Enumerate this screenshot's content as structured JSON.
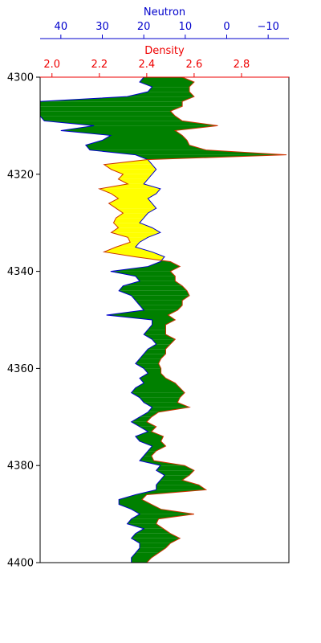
{
  "chart_data": {
    "type": "area",
    "y_axis": {
      "range": [
        4300,
        4400
      ],
      "inverted": true,
      "ticks": [
        4300,
        4320,
        4340,
        4360,
        4380,
        4400
      ],
      "label": ""
    },
    "top_axes": [
      {
        "name": "Neutron",
        "label": "Neutron",
        "color": "#0000cc",
        "range": [
          45,
          -15
        ],
        "reversed": true,
        "ticks": [
          40,
          30,
          20,
          10,
          0,
          -10
        ],
        "tick_labels": [
          "40",
          "30",
          "20",
          "10",
          "0",
          "−10"
        ]
      },
      {
        "name": "Density",
        "label": "Density",
        "color": "#ee0000",
        "range": [
          1.95,
          3.0
        ],
        "reversed": false,
        "ticks": [
          2.0,
          2.2,
          2.4,
          2.6,
          2.8
        ],
        "tick_labels": [
          "2.0",
          "2.2",
          "2.4",
          "2.6",
          "2.8"
        ]
      }
    ],
    "series": [
      {
        "name": "Neutron",
        "line_color": "#0000cc",
        "depth": [
          4300,
          4301,
          4302,
          4303,
          4304,
          4305,
          4306,
          4307,
          4308,
          4309,
          4310,
          4311,
          4312,
          4313,
          4314,
          4315,
          4316,
          4317,
          4318,
          4319,
          4320,
          4321,
          4322,
          4323,
          4324,
          4325,
          4326,
          4327,
          4328,
          4329,
          4330,
          4331,
          4332,
          4333,
          4334,
          4335,
          4336,
          4337,
          4338,
          4339,
          4340,
          4341,
          4342,
          4343,
          4344,
          4345,
          4346,
          4347,
          4348,
          4349,
          4350,
          4351,
          4352,
          4353,
          4354,
          4355,
          4356,
          4357,
          4358,
          4359,
          4360,
          4361,
          4362,
          4363,
          4364,
          4365,
          4366,
          4367,
          4368,
          4369,
          4370,
          4371,
          4372,
          4373,
          4374,
          4375,
          4376,
          4377,
          4378,
          4379,
          4380,
          4381,
          4382,
          4383,
          4384,
          4385,
          4386,
          4387,
          4388,
          4389,
          4390,
          4391,
          4392,
          4393,
          4394,
          4395,
          4396,
          4397,
          4398,
          4399,
          4400
        ],
        "values": [
          20,
          21,
          18,
          19,
          24,
          45,
          45,
          45,
          45,
          44,
          32,
          40,
          28,
          30,
          34,
          33,
          22,
          19,
          18,
          17,
          18,
          19,
          20,
          16,
          17,
          19,
          18,
          17,
          19,
          20,
          21,
          18,
          16,
          19,
          21,
          22,
          18,
          15,
          16,
          19,
          28,
          22,
          21,
          25,
          26,
          23,
          22,
          21,
          20,
          29,
          18,
          18,
          19,
          20,
          18,
          17,
          19,
          20,
          21,
          22,
          20,
          19,
          21,
          20,
          22,
          23,
          21,
          20,
          18,
          19,
          21,
          23,
          21,
          19,
          22,
          21,
          18,
          19,
          20,
          21,
          16,
          17,
          15,
          16,
          17,
          17,
          22,
          26,
          26,
          23,
          21,
          23,
          24,
          20,
          22,
          23,
          21,
          21,
          22,
          23,
          23
        ]
      },
      {
        "name": "Density",
        "line_color": "#cc3300",
        "depth": [
          4300,
          4301,
          4302,
          4303,
          4304,
          4305,
          4306,
          4307,
          4308,
          4309,
          4310,
          4311,
          4312,
          4313,
          4314,
          4315,
          4316,
          4317,
          4318,
          4319,
          4320,
          4321,
          4322,
          4323,
          4324,
          4325,
          4326,
          4327,
          4328,
          4329,
          4330,
          4331,
          4332,
          4333,
          4334,
          4335,
          4336,
          4337,
          4338,
          4339,
          4340,
          4341,
          4342,
          4343,
          4344,
          4345,
          4346,
          4347,
          4348,
          4349,
          4350,
          4351,
          4352,
          4353,
          4354,
          4355,
          4356,
          4357,
          4358,
          4359,
          4360,
          4361,
          4362,
          4363,
          4364,
          4365,
          4366,
          4367,
          4368,
          4369,
          4370,
          4371,
          4372,
          4373,
          4374,
          4375,
          4376,
          4377,
          4378,
          4379,
          4380,
          4381,
          4382,
          4383,
          4384,
          4385,
          4386,
          4387,
          4388,
          4389,
          4390,
          4391,
          4392,
          4393,
          4394,
          4395,
          4396,
          4397,
          4398,
          4399,
          4400
        ],
        "values": [
          2.55,
          2.6,
          2.58,
          2.58,
          2.6,
          2.55,
          2.55,
          2.5,
          2.52,
          2.55,
          2.7,
          2.52,
          2.55,
          2.57,
          2.58,
          2.65,
          2.99,
          2.4,
          2.22,
          2.25,
          2.3,
          2.28,
          2.32,
          2.2,
          2.25,
          2.28,
          2.24,
          2.27,
          2.3,
          2.27,
          2.26,
          2.28,
          2.25,
          2.32,
          2.33,
          2.27,
          2.22,
          2.35,
          2.5,
          2.54,
          2.5,
          2.52,
          2.52,
          2.55,
          2.57,
          2.58,
          2.55,
          2.55,
          2.53,
          2.49,
          2.52,
          2.48,
          2.48,
          2.48,
          2.52,
          2.5,
          2.48,
          2.48,
          2.46,
          2.45,
          2.46,
          2.46,
          2.48,
          2.52,
          2.54,
          2.56,
          2.54,
          2.53,
          2.58,
          2.45,
          2.42,
          2.4,
          2.44,
          2.42,
          2.47,
          2.46,
          2.48,
          2.44,
          2.42,
          2.43,
          2.56,
          2.6,
          2.58,
          2.55,
          2.62,
          2.65,
          2.4,
          2.38,
          2.42,
          2.46,
          2.6,
          2.45,
          2.44,
          2.47,
          2.5,
          2.54,
          2.5,
          2.48,
          2.45,
          2.42,
          2.4
        ]
      }
    ],
    "fills": [
      {
        "name": "crossover-sand",
        "color": "#ffff00",
        "condition": "density left of neutron"
      },
      {
        "name": "separation-shale",
        "color": "#008000",
        "condition": "density right of neutron"
      }
    ],
    "grid": false,
    "legend": "none"
  }
}
